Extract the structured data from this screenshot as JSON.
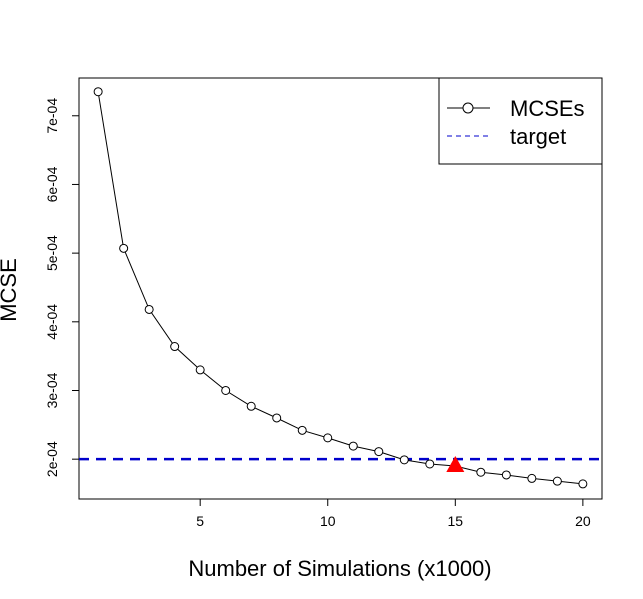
{
  "chart_data": {
    "type": "line",
    "title": "",
    "xlabel": "Number of Simulations (x1000)",
    "ylabel": "MCSE",
    "xlim": [
      0.25,
      20.75
    ],
    "ylim": [
      0.000142,
      0.000755
    ],
    "x_ticks": [
      {
        "value": 5,
        "label": "5"
      },
      {
        "value": 10,
        "label": "10"
      },
      {
        "value": 15,
        "label": "15"
      },
      {
        "value": 20,
        "label": "20"
      }
    ],
    "y_ticks": [
      {
        "value": 0.0002,
        "label": "2e-04"
      },
      {
        "value": 0.0003,
        "label": "3e-04"
      },
      {
        "value": 0.0004,
        "label": "4e-04"
      },
      {
        "value": 0.0005,
        "label": "5e-04"
      },
      {
        "value": 0.0006,
        "label": "6e-04"
      },
      {
        "value": 0.0007,
        "label": "7e-04"
      }
    ],
    "grid": false,
    "legend_position": "top-right",
    "series": [
      {
        "name": "MCSEs",
        "color": "#000000",
        "marker": "open-circle",
        "x": [
          1,
          2,
          3,
          4,
          5,
          6,
          7,
          8,
          9,
          10,
          11,
          12,
          13,
          14,
          15,
          16,
          17,
          18,
          19,
          20
        ],
        "y": [
          0.000735,
          0.000507,
          0.000418,
          0.000364,
          0.00033,
          0.0003,
          0.000277,
          0.00026,
          0.000242,
          0.000231,
          0.000219,
          0.000211,
          0.000199,
          0.000193,
          0.00019,
          0.000181,
          0.000177,
          0.000172,
          0.000168,
          0.000164
        ]
      }
    ],
    "reference_lines": [
      {
        "name": "target",
        "y": 0.0002,
        "color": "#0000cc",
        "style": "dashed"
      }
    ],
    "highlight": {
      "x": 15,
      "y": 0.00019,
      "marker": "filled-triangle",
      "color": "#ff0000"
    }
  }
}
